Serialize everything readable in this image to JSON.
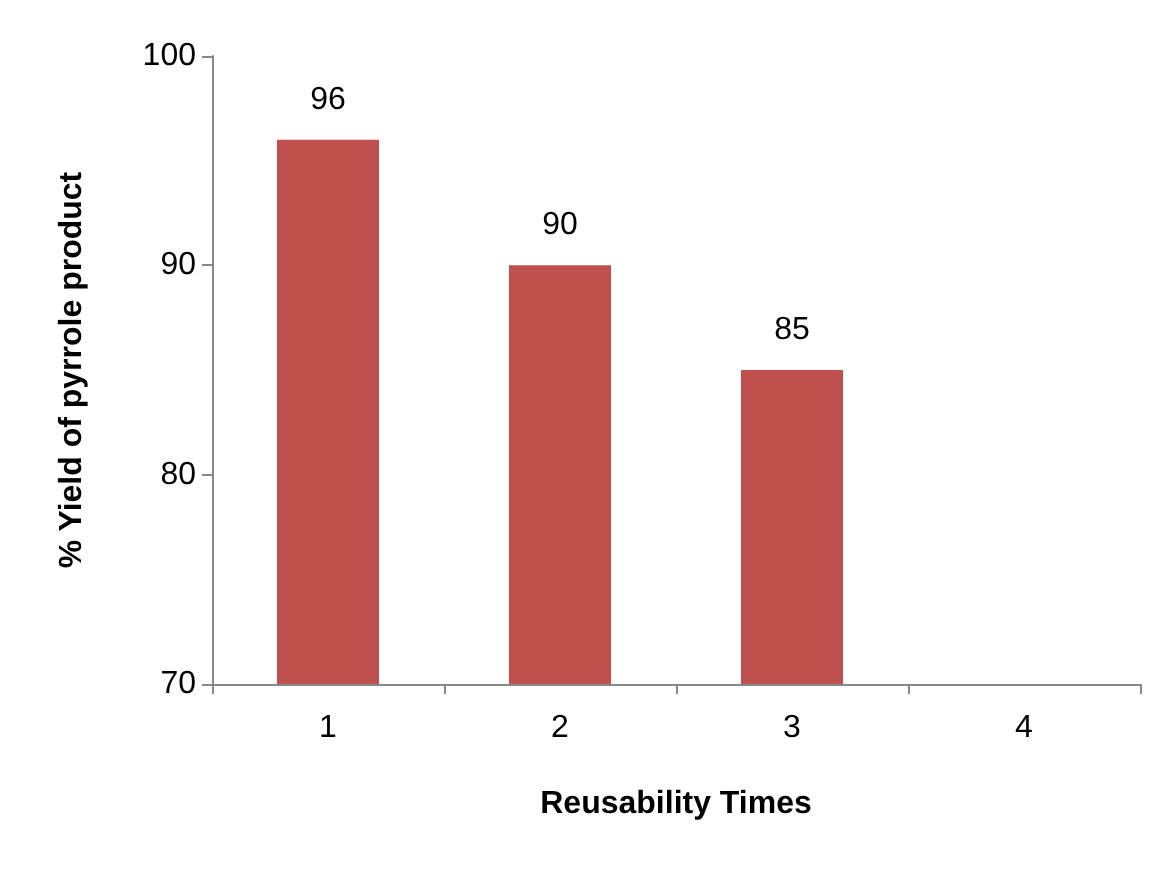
{
  "chart_data": {
    "type": "bar",
    "xlabel": "Reusability Times",
    "ylabel": "% Yield of pyrrole product",
    "categories": [
      "1",
      "2",
      "3",
      "4"
    ],
    "values": [
      96,
      90,
      85,
      null
    ],
    "color": "#c0504d",
    "ylim": [
      70,
      100
    ],
    "yticks": [
      70,
      80,
      90,
      100
    ],
    "data_labels": true,
    "grid": false
  }
}
